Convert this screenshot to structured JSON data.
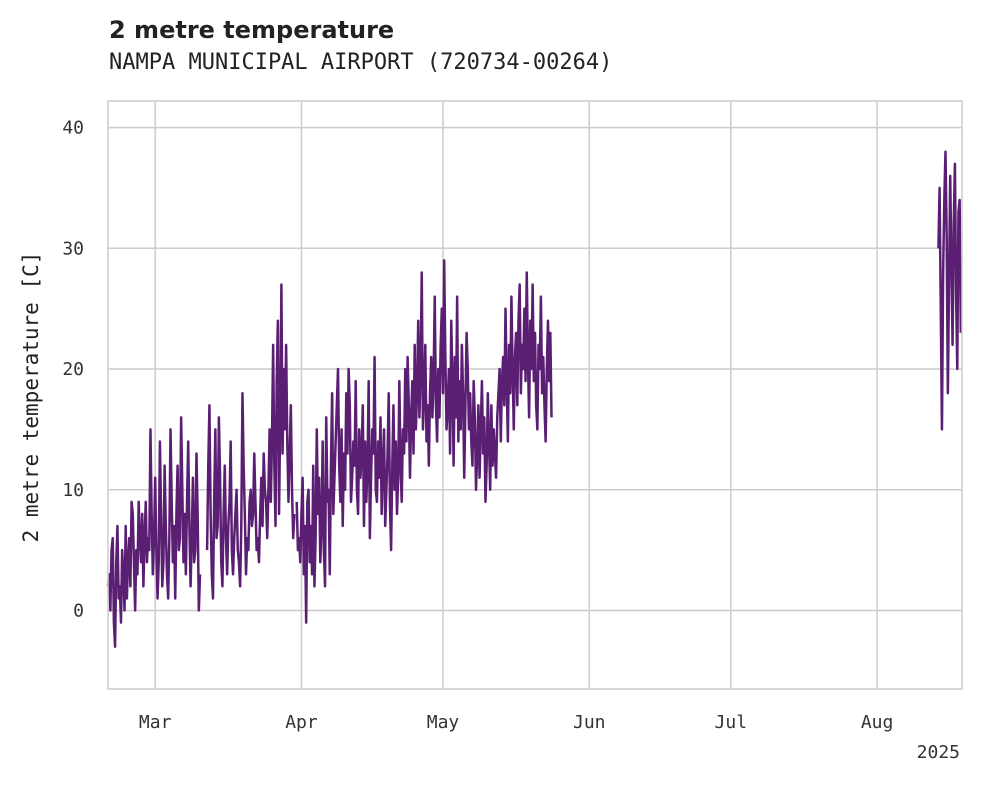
{
  "chart_data": {
    "type": "line",
    "title": "2 metre temperature",
    "subtitle": "NAMPA MUNICIPAL AIRPORT (720734-00264)",
    "xlabel": "",
    "ylabel": "2 metre temperature [C]",
    "ylim": [
      -6.5,
      42.2
    ],
    "xlim": [
      "2025-02-19",
      "2025-08-19"
    ],
    "yticks": [
      0,
      10,
      20,
      30,
      40
    ],
    "xticks": [
      {
        "date": "2025-03-01",
        "label": "Mar"
      },
      {
        "date": "2025-04-01",
        "label": "Apr"
      },
      {
        "date": "2025-05-01",
        "label": "May"
      },
      {
        "date": "2025-06-01",
        "label": "Jun"
      },
      {
        "date": "2025-07-01",
        "label": "Jul"
      },
      {
        "date": "2025-08-01",
        "label": "Aug"
      }
    ],
    "year_label": "2025",
    "grid": true,
    "color": "#5a1f73",
    "series": [
      {
        "name": "",
        "segments": [
          {
            "start": "2025-02-19",
            "step_hours": 6,
            "values": [
              2,
              3,
              0,
              5,
              6,
              -1,
              -3,
              4,
              7,
              1,
              2,
              -1,
              5,
              3,
              0,
              7,
              1,
              4,
              6,
              2,
              9,
              8,
              4,
              0,
              5,
              3,
              9,
              6,
              4,
              8,
              2,
              6,
              9,
              4,
              6,
              5,
              15,
              8,
              3,
              6,
              11,
              5,
              1,
              4,
              14,
              8,
              2,
              4,
              12,
              7,
              3,
              1,
              6,
              15,
              9,
              4,
              7,
              1,
              8,
              12,
              5,
              6,
              16,
              10,
              4,
              8,
              3,
              9,
              14,
              7,
              2,
              6,
              11,
              4,
              5,
              13,
              8,
              0,
              3
            ]
          },
          {
            "start": "2025-03-12",
            "step_hours": 6,
            "values": [
              5,
              12,
              17,
              8,
              3,
              1,
              9,
              15,
              6,
              7,
              16,
              11,
              4,
              2,
              8,
              12,
              6,
              3,
              7,
              9,
              14,
              5,
              3,
              6,
              8,
              10,
              5,
              4,
              2,
              7,
              18,
              12,
              8,
              3,
              6,
              5,
              9,
              10,
              7,
              8,
              13,
              9,
              5,
              6,
              4,
              8,
              11,
              7,
              13,
              10,
              9,
              6,
              10,
              15,
              9,
              14,
              22,
              12,
              7,
              19,
              24,
              8,
              16,
              27,
              13,
              20,
              15,
              22,
              14,
              9,
              13,
              17,
              10,
              6,
              8
            ]
          },
          {
            "start": "2025-03-31",
            "step_hours": 6,
            "values": [
              9,
              5,
              6,
              4,
              8,
              11,
              3,
              7,
              -1,
              9,
              10,
              4,
              7,
              3,
              12,
              2,
              6,
              15,
              8,
              11,
              4,
              7,
              14,
              5,
              2,
              16,
              9,
              10,
              3,
              12,
              18,
              8,
              11,
              14,
              17,
              20,
              12,
              9,
              15,
              7,
              13,
              10,
              18,
              13,
              20,
              17,
              9,
              11,
              14,
              12,
              19,
              10,
              8,
              15,
              11,
              13,
              17,
              7,
              14,
              9,
              12,
              19,
              6,
              11,
              15,
              13,
              21,
              10,
              9,
              14,
              11,
              16,
              8,
              12,
              15,
              7,
              10,
              13,
              18,
              9,
              5,
              12,
              17,
              10,
              14,
              8,
              11,
              19,
              12,
              9,
              15,
              13,
              20,
              14,
              21,
              17,
              11,
              16,
              19,
              13,
              22,
              15,
              18,
              24,
              16,
              20,
              28,
              15,
              18,
              22,
              14,
              17,
              12,
              18,
              21,
              16,
              19,
              26,
              17,
              14,
              20,
              16,
              22,
              25,
              18,
              29,
              21,
              15,
              17,
              20,
              13,
              24,
              19,
              12,
              21,
              16,
              26,
              14,
              19,
              15,
              22,
              18,
              11,
              17,
              23,
              20,
              15,
              18,
              14,
              12,
              19,
              16,
              10,
              13,
              17,
              11,
              15,
              19,
              13,
              16,
              9,
              12,
              18,
              14,
              10,
              17,
              12,
              15,
              13,
              11,
              16,
              18,
              20,
              14,
              19,
              21,
              17,
              25,
              19,
              14,
              22,
              18,
              26,
              20,
              15,
              21,
              23,
              17,
              24,
              27,
              18,
              22,
              20,
              25,
              19,
              28,
              21,
              16,
              24,
              20,
              27,
              19,
              23,
              17,
              15,
              22,
              20,
              26,
              18,
              21,
              17,
              14,
              20,
              24,
              19,
              23,
              16
            ]
          },
          {
            "start": "2025-08-14",
            "step_hours": 6,
            "values": [
              30,
              35,
              25,
              15,
              28,
              34,
              38,
              31,
              18,
              27,
              36,
              29,
              22,
              32,
              37,
              26,
              20,
              33,
              34,
              23
            ]
          }
        ]
      }
    ]
  }
}
